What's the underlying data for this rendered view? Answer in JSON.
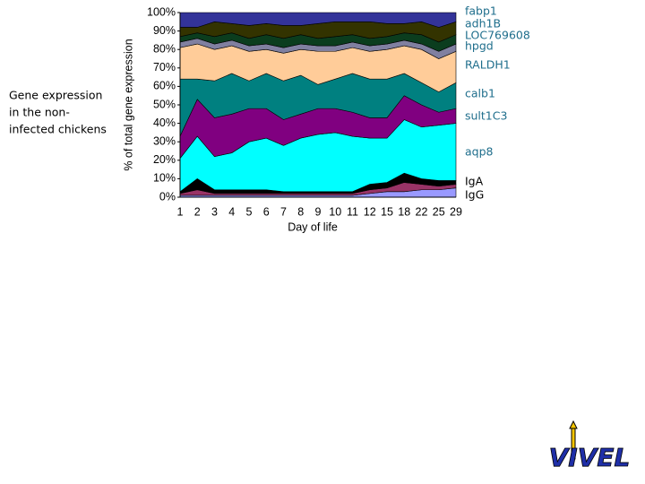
{
  "chart_data": {
    "type": "stacked_area",
    "y_label": "% of total gene expression",
    "x_label": "Day of life",
    "annotations": [
      "Gene expression",
      "in the non-",
      "infected chickens"
    ],
    "categories": [
      "1",
      "2",
      "3",
      "4",
      "5",
      "6",
      "7",
      "8",
      "9",
      "10",
      "11",
      "12",
      "15",
      "18",
      "22",
      "25",
      "29"
    ],
    "ylim": [
      0,
      100
    ],
    "yticks": [
      {
        "value": 0,
        "label": "0%"
      },
      {
        "value": 10,
        "label": "10%"
      },
      {
        "value": 20,
        "label": "20%"
      },
      {
        "value": 30,
        "label": "30%"
      },
      {
        "value": 40,
        "label": "40%"
      },
      {
        "value": 50,
        "label": "50%"
      },
      {
        "value": 60,
        "label": "60%"
      },
      {
        "value": 70,
        "label": "70%"
      },
      {
        "value": 80,
        "label": "80%"
      },
      {
        "value": 90,
        "label": "90%"
      },
      {
        "value": 100,
        "label": "100%"
      }
    ],
    "series": [
      {
        "name": "IgG",
        "color": "#9999ff",
        "values": [
          1,
          1,
          1,
          1,
          1,
          1,
          1,
          1,
          1,
          1,
          1,
          2,
          3,
          3,
          4,
          4,
          5
        ]
      },
      {
        "name": "IgA",
        "color": "#993366",
        "values": [
          1,
          3,
          1,
          1,
          1,
          1,
          1,
          1,
          1,
          1,
          1,
          2,
          2,
          5,
          3,
          2,
          2
        ]
      },
      {
        "color": "#000000",
        "values": [
          1,
          6,
          2,
          2,
          2,
          2,
          1,
          1,
          1,
          1,
          1,
          3,
          3,
          5,
          3,
          3,
          2
        ]
      },
      {
        "name": "aqp8",
        "color": "#00ffff",
        "values": [
          18,
          23,
          18,
          20,
          26,
          28,
          25,
          29,
          31,
          32,
          30,
          25,
          24,
          29,
          28,
          30,
          31
        ]
      },
      {
        "name": "sult1C3",
        "color": "#800080",
        "values": [
          12,
          20,
          21,
          21,
          18,
          16,
          14,
          13,
          14,
          13,
          13,
          11,
          11,
          13,
          12,
          7,
          8
        ]
      },
      {
        "name": "calb1",
        "color": "#008080",
        "values": [
          31,
          11,
          20,
          22,
          15,
          19,
          21,
          21,
          13,
          16,
          21,
          21,
          21,
          12,
          12,
          11,
          14
        ]
      },
      {
        "name": "RALDH1",
        "color": "#ffcc99",
        "values": [
          17,
          19,
          17,
          15,
          16,
          13,
          15,
          14,
          18,
          15,
          14,
          15,
          16,
          15,
          18,
          18,
          17
        ]
      },
      {
        "name": "hpgd",
        "color": "#8080a0",
        "values": [
          3,
          3,
          3,
          3,
          3,
          3,
          3,
          3,
          3,
          3,
          3,
          3,
          3,
          3,
          3,
          4,
          4
        ]
      },
      {
        "name": "LOC769608",
        "color": "#0b3d1e",
        "values": [
          3,
          3,
          4,
          4,
          4,
          5,
          5,
          5,
          4,
          5,
          4,
          4,
          4,
          4,
          5,
          5,
          5
        ]
      },
      {
        "name": "adh1B",
        "color": "#333300",
        "values": [
          5,
          3,
          8,
          5,
          7,
          6,
          7,
          5,
          8,
          8,
          7,
          9,
          7,
          5,
          7,
          8,
          7
        ]
      },
      {
        "name": "fabp1",
        "color": "#333399",
        "values": [
          8,
          8,
          5,
          6,
          7,
          6,
          7,
          7,
          6,
          5,
          5,
          5,
          6,
          6,
          5,
          8,
          5
        ]
      }
    ]
  },
  "logo": {
    "text": "VIVEL"
  }
}
